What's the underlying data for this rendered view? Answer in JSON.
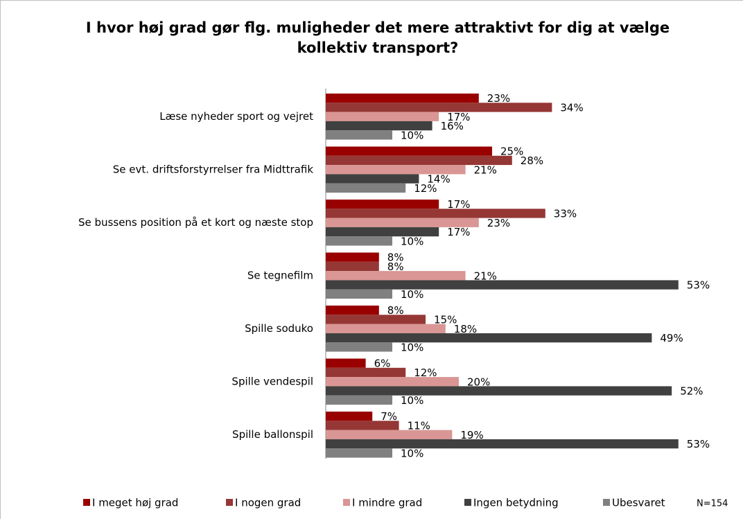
{
  "chart_data": {
    "type": "barh",
    "title": "I hvor høj grad gør flg. muligheder det mere attraktivt for dig at vælge kollektiv transport?",
    "categories": [
      "Læse nyheder sport og vejret",
      "Se evt. driftsforstyrrelser fra Midttrafik",
      "Se bussens position  på et kort og næste stop",
      "Se tegnefilm",
      "Spille soduko",
      "Spille vendespil",
      "Spille ballonspil"
    ],
    "series": [
      {
        "name": "I meget høj grad",
        "color": "#990000",
        "values": [
          23,
          25,
          17,
          8,
          8,
          6,
          7
        ],
        "value_labels": [
          "23%",
          "25%",
          "17%",
          "8%",
          "8%",
          "6%",
          "7%"
        ]
      },
      {
        "name": "I nogen grad",
        "color": "#953735",
        "values": [
          34,
          28,
          33,
          8,
          15,
          12,
          11
        ],
        "value_labels": [
          "34%",
          "28%",
          "33%",
          "8%",
          "15%",
          "12%",
          "11%"
        ]
      },
      {
        "name": "I mindre grad",
        "color": "#d99694",
        "values": [
          17,
          21,
          23,
          21,
          18,
          20,
          19
        ],
        "value_labels": [
          "17%",
          "21%",
          "23%",
          "21%",
          "18%",
          "20%",
          "19%"
        ]
      },
      {
        "name": "Ingen betydning",
        "color": "#404040",
        "values": [
          16,
          14,
          17,
          53,
          49,
          52,
          53
        ],
        "value_labels": [
          "16%",
          "14%",
          "17%",
          "53%",
          "49%",
          "52%",
          "53%"
        ]
      },
      {
        "name": "Ubesvaret",
        "color": "#808080",
        "values": [
          10,
          12,
          10,
          10,
          10,
          10,
          10
        ],
        "value_labels": [
          "10%",
          "12%",
          "10%",
          "10%",
          "10%",
          "10%",
          "10%"
        ]
      }
    ],
    "annotation": "N=154",
    "legend": "bottom"
  }
}
